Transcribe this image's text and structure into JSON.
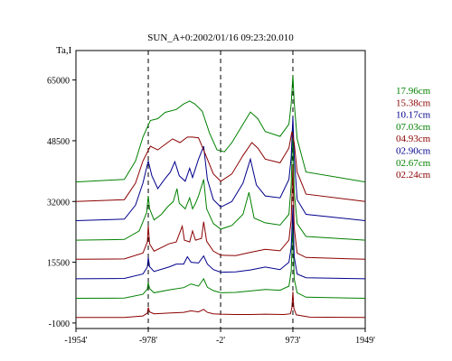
{
  "chart_data": {
    "type": "line",
    "title": "SUN_A+0:2002/01/16 09:23:20.010",
    "ylabel": "Ta,I",
    "xlabel": "",
    "xlim": [
      -1954,
      1949
    ],
    "ylim": [
      -2500,
      73000
    ],
    "x_ticks": [
      {
        "value": -1954,
        "label": "-1954'"
      },
      {
        "value": -978,
        "label": "-978'"
      },
      {
        "value": -2,
        "label": "-2'"
      },
      {
        "value": 973,
        "label": "973'"
      },
      {
        "value": 1949,
        "label": "1949'"
      }
    ],
    "y_ticks": [
      {
        "value": 65000,
        "label": "65000"
      },
      {
        "value": 48500,
        "label": "48500"
      },
      {
        "value": 32000,
        "label": "32000"
      },
      {
        "value": 15500,
        "label": "15500"
      },
      {
        "value": -1000,
        "label": "-1000"
      }
    ],
    "reference_lines_x": [
      -978,
      -2,
      973
    ],
    "grid": false,
    "legend_position": "right",
    "series": [
      {
        "name": "02.24cm",
        "color": "#8b0000",
        "baseline": 500,
        "points": [
          [
            -1954,
            500
          ],
          [
            -1300,
            520
          ],
          [
            -1050,
            900
          ],
          [
            -990,
            1700
          ],
          [
            -978,
            3200
          ],
          [
            -960,
            2000
          ],
          [
            -900,
            1500
          ],
          [
            -700,
            1700
          ],
          [
            -500,
            1900
          ],
          [
            -400,
            2300
          ],
          [
            -300,
            2000
          ],
          [
            -230,
            2700
          ],
          [
            -180,
            1900
          ],
          [
            -100,
            1500
          ],
          [
            0,
            1400
          ],
          [
            200,
            1300
          ],
          [
            400,
            1300
          ],
          [
            600,
            1400
          ],
          [
            850,
            1300
          ],
          [
            940,
            1500
          ],
          [
            960,
            3200
          ],
          [
            973,
            7500
          ],
          [
            985,
            3000
          ],
          [
            1020,
            1200
          ],
          [
            1200,
            600
          ],
          [
            1949,
            500
          ]
        ]
      },
      {
        "name": "02.67cm",
        "color": "#008000",
        "baseline": 5700,
        "points": [
          [
            -1954,
            5700
          ],
          [
            -1300,
            5750
          ],
          [
            -1050,
            6800
          ],
          [
            -990,
            8200
          ],
          [
            -978,
            10000
          ],
          [
            -960,
            8300
          ],
          [
            -900,
            7200
          ],
          [
            -700,
            8000
          ],
          [
            -500,
            8600
          ],
          [
            -400,
            9600
          ],
          [
            -300,
            9000
          ],
          [
            -230,
            11000
          ],
          [
            -180,
            8700
          ],
          [
            -100,
            7800
          ],
          [
            0,
            7200
          ],
          [
            200,
            7300
          ],
          [
            400,
            7700
          ],
          [
            600,
            8100
          ],
          [
            800,
            7900
          ],
          [
            920,
            9000
          ],
          [
            950,
            13000
          ],
          [
            973,
            26000
          ],
          [
            990,
            11000
          ],
          [
            1030,
            7200
          ],
          [
            1150,
            6000
          ],
          [
            1949,
            5700
          ]
        ]
      },
      {
        "name": "02.90cm",
        "color": "#00008b",
        "baseline": 11000,
        "points": [
          [
            -1954,
            11000
          ],
          [
            -1300,
            11100
          ],
          [
            -1050,
            12300
          ],
          [
            -990,
            14200
          ],
          [
            -978,
            16800
          ],
          [
            -960,
            14300
          ],
          [
            -900,
            13000
          ],
          [
            -700,
            14200
          ],
          [
            -600,
            15000
          ],
          [
            -500,
            15000
          ],
          [
            -450,
            17000
          ],
          [
            -400,
            15500
          ],
          [
            -300,
            15300
          ],
          [
            -230,
            17200
          ],
          [
            -180,
            15000
          ],
          [
            -100,
            13500
          ],
          [
            0,
            12800
          ],
          [
            200,
            12900
          ],
          [
            400,
            13400
          ],
          [
            600,
            14200
          ],
          [
            800,
            13500
          ],
          [
            920,
            15500
          ],
          [
            950,
            19500
          ],
          [
            973,
            30500
          ],
          [
            990,
            17000
          ],
          [
            1030,
            12300
          ],
          [
            1150,
            11300
          ],
          [
            1949,
            11000
          ]
        ]
      },
      {
        "name": "04.93cm",
        "color": "#8b0000",
        "baseline": 16300,
        "points": [
          [
            -1954,
            16300
          ],
          [
            -1300,
            16400
          ],
          [
            -1050,
            18000
          ],
          [
            -990,
            21000
          ],
          [
            -978,
            25500
          ],
          [
            -960,
            20500
          ],
          [
            -900,
            18500
          ],
          [
            -700,
            20500
          ],
          [
            -600,
            21000
          ],
          [
            -520,
            25300
          ],
          [
            -490,
            21500
          ],
          [
            -420,
            21000
          ],
          [
            -380,
            24000
          ],
          [
            -340,
            21500
          ],
          [
            -260,
            22000
          ],
          [
            -230,
            26500
          ],
          [
            -190,
            21200
          ],
          [
            -100,
            18500
          ],
          [
            0,
            17400
          ],
          [
            200,
            17300
          ],
          [
            400,
            18200
          ],
          [
            600,
            19000
          ],
          [
            800,
            18600
          ],
          [
            920,
            21500
          ],
          [
            950,
            27000
          ],
          [
            973,
            42000
          ],
          [
            990,
            25000
          ],
          [
            1030,
            18000
          ],
          [
            1150,
            16800
          ],
          [
            1949,
            16300
          ]
        ]
      },
      {
        "name": "07.03cm",
        "color": "#008000",
        "baseline": 21500,
        "points": [
          [
            -1954,
            21500
          ],
          [
            -1300,
            21700
          ],
          [
            -1100,
            24000
          ],
          [
            -1000,
            29000
          ],
          [
            -978,
            33500
          ],
          [
            -960,
            30000
          ],
          [
            -900,
            27000
          ],
          [
            -800,
            28500
          ],
          [
            -720,
            30500
          ],
          [
            -640,
            32000
          ],
          [
            -590,
            35500
          ],
          [
            -560,
            31500
          ],
          [
            -480,
            30000
          ],
          [
            -420,
            33000
          ],
          [
            -380,
            30000
          ],
          [
            -340,
            31500
          ],
          [
            -300,
            33500
          ],
          [
            -230,
            38000
          ],
          [
            -190,
            30000
          ],
          [
            -100,
            26000
          ],
          [
            0,
            24500
          ],
          [
            150,
            25500
          ],
          [
            300,
            28500
          ],
          [
            380,
            34500
          ],
          [
            450,
            27500
          ],
          [
            600,
            26200
          ],
          [
            800,
            25600
          ],
          [
            920,
            28500
          ],
          [
            950,
            36500
          ],
          [
            973,
            52000
          ],
          [
            990,
            35000
          ],
          [
            1030,
            26000
          ],
          [
            1150,
            22500
          ],
          [
            1949,
            21500
          ]
        ]
      },
      {
        "name": "10.17cm",
        "color": "#00008b",
        "baseline": 26800,
        "points": [
          [
            -1954,
            26800
          ],
          [
            -1300,
            27200
          ],
          [
            -1150,
            31000
          ],
          [
            -1050,
            37000
          ],
          [
            -978,
            43000
          ],
          [
            -930,
            39000
          ],
          [
            -850,
            35500
          ],
          [
            -760,
            38000
          ],
          [
            -680,
            40000
          ],
          [
            -620,
            42800
          ],
          [
            -560,
            39000
          ],
          [
            -480,
            37500
          ],
          [
            -420,
            41000
          ],
          [
            -380,
            38500
          ],
          [
            -300,
            43500
          ],
          [
            -230,
            47000
          ],
          [
            -180,
            38000
          ],
          [
            -100,
            32500
          ],
          [
            0,
            30500
          ],
          [
            150,
            32000
          ],
          [
            300,
            37000
          ],
          [
            400,
            43500
          ],
          [
            480,
            36500
          ],
          [
            600,
            33500
          ],
          [
            800,
            33000
          ],
          [
            920,
            38000
          ],
          [
            950,
            44000
          ],
          [
            973,
            55000
          ],
          [
            990,
            44500
          ],
          [
            1030,
            32500
          ],
          [
            1150,
            28500
          ],
          [
            1949,
            26800
          ]
        ]
      },
      {
        "name": "15.38cm",
        "color": "#8b0000",
        "baseline": 32000,
        "points": [
          [
            -1954,
            32000
          ],
          [
            -1300,
            32500
          ],
          [
            -1150,
            37000
          ],
          [
            -1050,
            43000
          ],
          [
            -950,
            47000
          ],
          [
            -850,
            46000
          ],
          [
            -750,
            47500
          ],
          [
            -650,
            49000
          ],
          [
            -550,
            48000
          ],
          [
            -450,
            49500
          ],
          [
            -380,
            49500
          ],
          [
            -300,
            49300
          ],
          [
            -200,
            44500
          ],
          [
            -100,
            39500
          ],
          [
            0,
            37500
          ],
          [
            150,
            39500
          ],
          [
            300,
            44500
          ],
          [
            420,
            48000
          ],
          [
            500,
            46500
          ],
          [
            600,
            43500
          ],
          [
            800,
            42500
          ],
          [
            920,
            46500
          ],
          [
            960,
            51000
          ],
          [
            990,
            48000
          ],
          [
            1030,
            40000
          ],
          [
            1150,
            34000
          ],
          [
            1949,
            32000
          ]
        ]
      },
      {
        "name": "17.96cm",
        "color": "#008000",
        "baseline": 37300,
        "points": [
          [
            -1954,
            37300
          ],
          [
            -1300,
            38000
          ],
          [
            -1150,
            43000
          ],
          [
            -1050,
            49500
          ],
          [
            -950,
            54000
          ],
          [
            -850,
            54500
          ],
          [
            -750,
            56200
          ],
          [
            -600,
            57000
          ],
          [
            -500,
            58500
          ],
          [
            -420,
            59300
          ],
          [
            -350,
            58500
          ],
          [
            -250,
            56500
          ],
          [
            -150,
            50500
          ],
          [
            -50,
            46000
          ],
          [
            50,
            45500
          ],
          [
            150,
            48000
          ],
          [
            300,
            53000
          ],
          [
            400,
            56300
          ],
          [
            500,
            54500
          ],
          [
            600,
            51000
          ],
          [
            800,
            49700
          ],
          [
            920,
            53000
          ],
          [
            950,
            58500
          ],
          [
            973,
            66300
          ],
          [
            990,
            59000
          ],
          [
            1030,
            49000
          ],
          [
            1150,
            40000
          ],
          [
            1949,
            37300
          ]
        ]
      }
    ]
  }
}
